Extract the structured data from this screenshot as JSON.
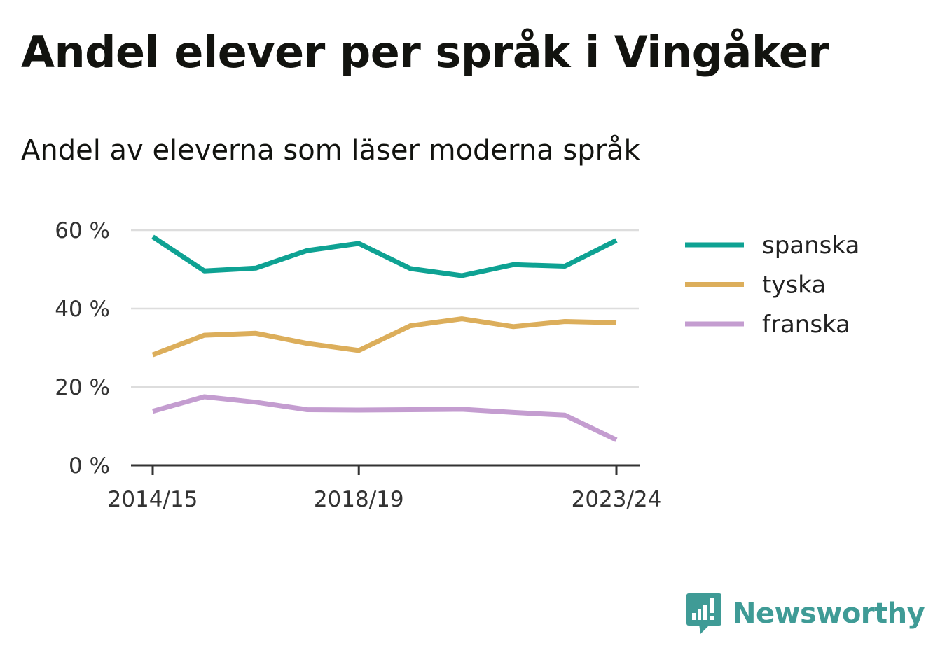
{
  "header": {
    "title": "Andel elever per språk i Vingåker",
    "subtitle": "Andel av eleverna som läser moderna språk"
  },
  "branding": {
    "name": "Newsworthy",
    "icon": "newsworthy-logo-icon",
    "color": "#3f9b96"
  },
  "chart_data": {
    "type": "line",
    "title": "Andel elever per språk i Vingåker",
    "subtitle": "Andel av eleverna som läser moderna språk",
    "xlabel": "",
    "ylabel": "",
    "x": [
      "2014/15",
      "2015/16",
      "2016/17",
      "2017/18",
      "2018/19",
      "2019/20",
      "2020/21",
      "2021/22",
      "2022/23",
      "2023/24"
    ],
    "x_ticks": [
      "2014/15",
      "2018/19",
      "2023/24"
    ],
    "x_positions": [
      0,
      1,
      2,
      3,
      4,
      5,
      6,
      7,
      8,
      9
    ],
    "x_tick_positions": [
      0,
      4,
      9
    ],
    "y_ticks": [
      "0 %",
      "20 %",
      "40 %",
      "60 %"
    ],
    "y_tick_values": [
      0,
      20,
      40,
      60
    ],
    "ylim": [
      0,
      60
    ],
    "grid": true,
    "legend_position": "right",
    "series": [
      {
        "name": "spanska",
        "color": "#0ea293",
        "values": [
          58.3,
          49.6,
          50.3,
          54.8,
          56.6,
          50.2,
          48.4,
          51.2,
          50.8,
          57.4
        ]
      },
      {
        "name": "tyska",
        "color": "#dcae5b",
        "values": [
          28.2,
          33.2,
          33.7,
          31.1,
          29.3,
          35.6,
          37.4,
          35.4,
          36.7,
          36.4
        ]
      },
      {
        "name": "franska",
        "color": "#c49dd0",
        "values": [
          13.8,
          17.5,
          16.1,
          14.2,
          14.1,
          14.2,
          14.3,
          13.5,
          12.8,
          6.5
        ]
      }
    ]
  }
}
